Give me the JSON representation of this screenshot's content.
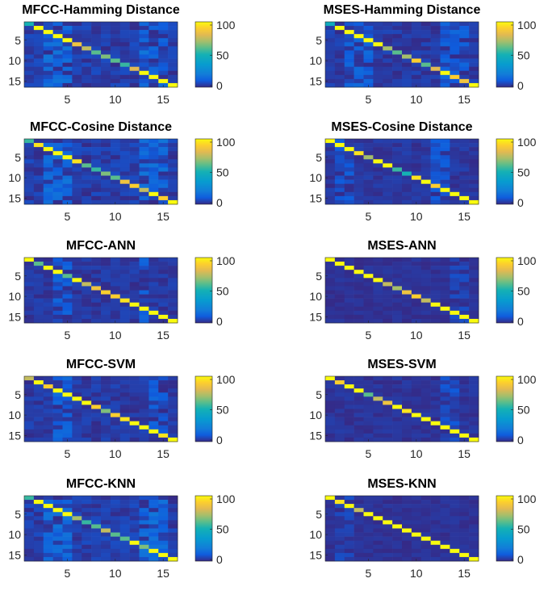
{
  "chart_data": [
    {
      "type": "heatmap",
      "title": "MFCC-Hamming Distance",
      "size": 16,
      "diagonal": [
        50,
        100,
        100,
        100,
        100,
        85,
        75,
        60,
        65,
        60,
        55,
        80,
        100,
        100,
        100,
        100
      ],
      "seed": 11,
      "offdiag_level": 18,
      "strong_columns": [
        3,
        4,
        5,
        13,
        14,
        15
      ],
      "x_ticks": [
        "5",
        "10",
        "15"
      ],
      "y_ticks": [
        "5",
        "10",
        "15"
      ],
      "colorbar": {
        "min": 0,
        "max": 100,
        "ticks": [
          "0",
          "50",
          "100"
        ]
      }
    },
    {
      "type": "heatmap",
      "title": "MSES-Hamming Distance",
      "size": 16,
      "diagonal": [
        45,
        100,
        100,
        100,
        100,
        100,
        70,
        60,
        70,
        90,
        60,
        80,
        100,
        90,
        85,
        100
      ],
      "seed": 23,
      "offdiag_level": 15,
      "strong_columns": [
        3,
        4,
        5,
        13,
        14,
        15
      ],
      "x_ticks": [
        "5",
        "10",
        "15"
      ],
      "y_ticks": [
        "5",
        "10",
        "15"
      ],
      "colorbar": {
        "min": 0,
        "max": 100,
        "ticks": [
          "0",
          "50",
          "100"
        ]
      }
    },
    {
      "type": "heatmap",
      "title": "MFCC-Cosine Distance",
      "size": 16,
      "diagonal": [
        55,
        95,
        100,
        100,
        100,
        95,
        60,
        55,
        65,
        60,
        85,
        90,
        75,
        100,
        90,
        100
      ],
      "seed": 37,
      "offdiag_level": 18,
      "strong_columns": [
        3,
        4,
        5,
        13,
        14,
        15
      ],
      "x_ticks": [
        "5",
        "10",
        "15"
      ],
      "y_ticks": [
        "5",
        "10",
        "15"
      ],
      "colorbar": {
        "min": 0,
        "max": 100,
        "ticks": [
          "0",
          "50",
          "100"
        ]
      }
    },
    {
      "type": "heatmap",
      "title": "MSES-Cosine Distance",
      "size": 16,
      "diagonal": [
        100,
        100,
        100,
        95,
        70,
        100,
        100,
        55,
        50,
        95,
        100,
        90,
        100,
        100,
        100,
        100
      ],
      "seed": 41,
      "offdiag_level": 12,
      "strong_columns": [
        2,
        3,
        12,
        13
      ],
      "x_ticks": [
        "5",
        "10",
        "15"
      ],
      "y_ticks": [
        "5",
        "10",
        "15"
      ],
      "colorbar": {
        "min": 0,
        "max": 100,
        "ticks": [
          "0",
          "50",
          "100"
        ]
      }
    },
    {
      "type": "heatmap",
      "title": "MFCC-ANN",
      "size": 16,
      "diagonal": [
        100,
        60,
        100,
        100,
        60,
        100,
        75,
        85,
        90,
        90,
        95,
        100,
        100,
        100,
        100,
        100
      ],
      "seed": 53,
      "offdiag_level": 14,
      "strong_columns": [
        4,
        5,
        13
      ],
      "x_ticks": [
        "5",
        "10",
        "15"
      ],
      "y_ticks": [
        "5",
        "10",
        "15"
      ],
      "colorbar": {
        "min": 0,
        "max": 100,
        "ticks": [
          "0",
          "50",
          "100"
        ]
      }
    },
    {
      "type": "heatmap",
      "title": "MSES-ANN",
      "size": 16,
      "diagonal": [
        100,
        100,
        100,
        100,
        100,
        100,
        75,
        70,
        85,
        90,
        75,
        100,
        100,
        100,
        100,
        100
      ],
      "seed": 67,
      "offdiag_level": 8,
      "strong_columns": [
        14,
        15
      ],
      "x_ticks": [
        "5",
        "10",
        "15"
      ],
      "y_ticks": [
        "5",
        "10",
        "15"
      ],
      "colorbar": {
        "min": 0,
        "max": 100,
        "ticks": [
          "0",
          "50",
          "100"
        ]
      }
    },
    {
      "type": "heatmap",
      "title": "MFCC-SVM",
      "size": 16,
      "diagonal": [
        75,
        100,
        90,
        100,
        100,
        100,
        100,
        90,
        65,
        90,
        95,
        100,
        100,
        100,
        95,
        100
      ],
      "seed": 71,
      "offdiag_level": 15,
      "strong_columns": [
        4,
        5,
        14,
        15
      ],
      "x_ticks": [
        "5",
        "10",
        "15"
      ],
      "y_ticks": [
        "5",
        "10",
        "15"
      ],
      "colorbar": {
        "min": 0,
        "max": 100,
        "ticks": [
          "0",
          "50",
          "100"
        ]
      }
    },
    {
      "type": "heatmap",
      "title": "MSES-SVM",
      "size": 16,
      "diagonal": [
        100,
        90,
        100,
        100,
        60,
        75,
        85,
        100,
        95,
        100,
        100,
        100,
        100,
        100,
        100,
        100
      ],
      "seed": 83,
      "offdiag_level": 10,
      "strong_columns": [
        13,
        14
      ],
      "x_ticks": [
        "5",
        "10",
        "15"
      ],
      "y_ticks": [
        "5",
        "10",
        "15"
      ],
      "colorbar": {
        "min": 0,
        "max": 100,
        "ticks": [
          "0",
          "50",
          "100"
        ]
      }
    },
    {
      "type": "heatmap",
      "title": "MFCC-KNN",
      "size": 16,
      "diagonal": [
        55,
        100,
        100,
        100,
        100,
        70,
        55,
        60,
        75,
        60,
        60,
        100,
        65,
        100,
        100,
        100
      ],
      "seed": 97,
      "offdiag_level": 18,
      "strong_columns": [
        3,
        4,
        5,
        13,
        14,
        15
      ],
      "x_ticks": [
        "5",
        "10",
        "15"
      ],
      "y_ticks": [
        "5",
        "10",
        "15"
      ],
      "colorbar": {
        "min": 0,
        "max": 100,
        "ticks": [
          "0",
          "50",
          "100"
        ]
      }
    },
    {
      "type": "heatmap",
      "title": "MSES-KNN",
      "size": 16,
      "diagonal": [
        100,
        95,
        100,
        75,
        100,
        100,
        100,
        100,
        100,
        100,
        100,
        100,
        100,
        100,
        100,
        100
      ],
      "seed": 101,
      "offdiag_level": 8,
      "strong_columns": [
        2,
        3
      ],
      "x_ticks": [
        "5",
        "10",
        "15"
      ],
      "y_ticks": [
        "5",
        "10",
        "15"
      ],
      "colorbar": {
        "min": 0,
        "max": 100,
        "ticks": [
          "0",
          "50",
          "100"
        ]
      }
    }
  ]
}
